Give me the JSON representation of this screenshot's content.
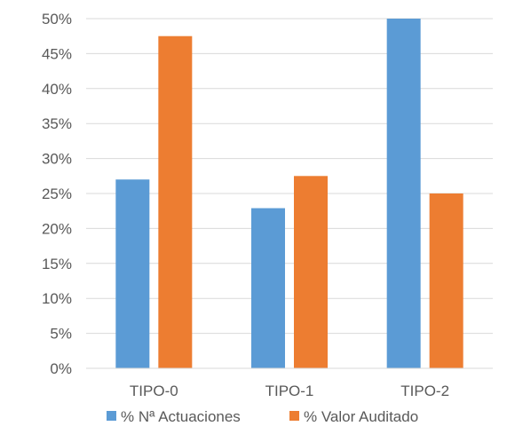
{
  "chart_data": {
    "type": "bar",
    "categories": [
      "TIPO-0",
      "TIPO-1",
      "TIPO-2"
    ],
    "series": [
      {
        "name": "% Nª Actuaciones",
        "values": [
          27.0,
          22.9,
          50.0
        ],
        "color": "#5B9BD5"
      },
      {
        "name": "% Valor Auditado",
        "values": [
          47.5,
          27.5,
          25.0
        ],
        "color": "#ED7D31"
      }
    ],
    "yticks": [
      "0%",
      "5%",
      "10%",
      "15%",
      "20%",
      "25%",
      "30%",
      "35%",
      "40%",
      "45%",
      "50%"
    ],
    "ylim": [
      0,
      50
    ],
    "grid": true,
    "legend_position": "bottom"
  }
}
